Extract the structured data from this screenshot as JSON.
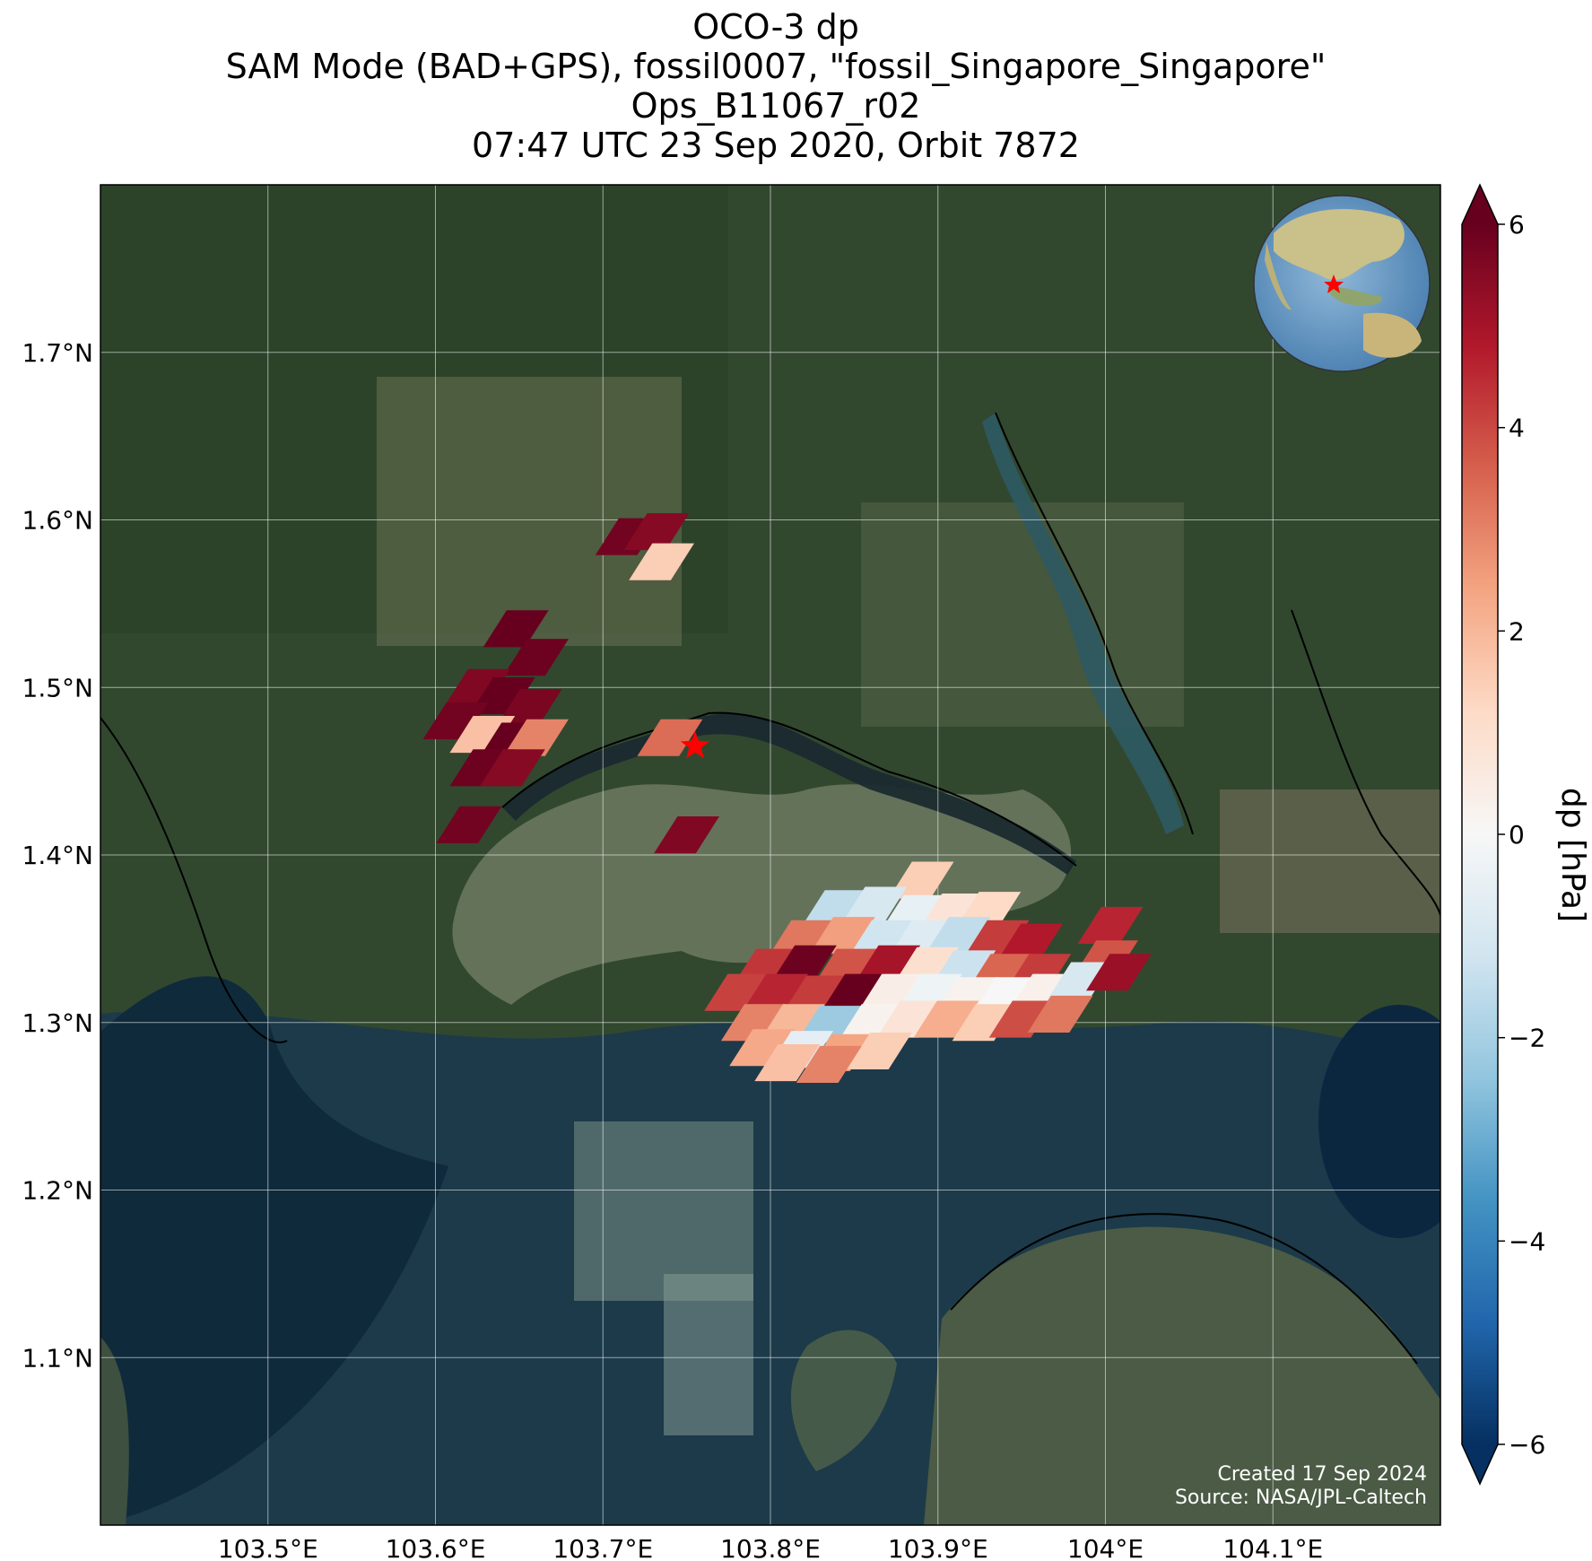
{
  "title": {
    "line1": "OCO-3 dp",
    "line2": "SAM Mode (BAD+GPS), fossil0007, \"fossil_Singapore_Singapore\"",
    "line3": "Ops_B11067_r02",
    "line4": "07:47 UTC 23 Sep 2020, Orbit 7872"
  },
  "map": {
    "lon_range": [
      103.4,
      104.2
    ],
    "lat_range": [
      1.0,
      1.8
    ],
    "lon_ticks": [
      {
        "value": 103.5,
        "label": "103.5°E"
      },
      {
        "value": 103.6,
        "label": "103.6°E"
      },
      {
        "value": 103.7,
        "label": "103.7°E"
      },
      {
        "value": 103.8,
        "label": "103.8°E"
      },
      {
        "value": 103.9,
        "label": "103.9°E"
      },
      {
        "value": 104.0,
        "label": "104°E"
      },
      {
        "value": 104.1,
        "label": "104.1°E"
      }
    ],
    "lat_ticks": [
      {
        "value": 1.1,
        "label": "1.1°N"
      },
      {
        "value": 1.2,
        "label": "1.2°N"
      },
      {
        "value": 1.3,
        "label": "1.3°N"
      },
      {
        "value": 1.4,
        "label": "1.4°N"
      },
      {
        "value": 1.5,
        "label": "1.5°N"
      },
      {
        "value": 1.6,
        "label": "1.6°N"
      },
      {
        "value": 1.7,
        "label": "1.7°N"
      }
    ],
    "grid": true,
    "target": {
      "lon": 103.755,
      "lat": 1.465,
      "marker": "red-star"
    },
    "inset_globe": {
      "position": "top-right",
      "marker": "red-star"
    },
    "credits": {
      "created": "Created 17 Sep 2024",
      "source": "Source: NASA/JPL-Caltech"
    }
  },
  "colorbar": {
    "label": "dp [hPa]",
    "range": [
      -6,
      6
    ],
    "ticks": [
      {
        "value": 6,
        "label": "6"
      },
      {
        "value": 4,
        "label": "4"
      },
      {
        "value": 2,
        "label": "2"
      },
      {
        "value": 0,
        "label": "0"
      },
      {
        "value": -2,
        "label": "−2"
      },
      {
        "value": -4,
        "label": "−4"
      },
      {
        "value": -6,
        "label": "−6"
      }
    ],
    "colormap": "RdBu_r",
    "extend": "both"
  },
  "chart_data": {
    "type": "heatmap",
    "variable": "dp",
    "units": "hPa",
    "soundings": [
      {
        "lon": 103.715,
        "lat": 1.59,
        "dp": 5.8
      },
      {
        "lon": 103.732,
        "lat": 1.593,
        "dp": 5.5
      },
      {
        "lon": 103.735,
        "lat": 1.575,
        "dp": 1.5
      },
      {
        "lon": 103.648,
        "lat": 1.535,
        "dp": 6.0
      },
      {
        "lon": 103.66,
        "lat": 1.518,
        "dp": 5.9
      },
      {
        "lon": 103.625,
        "lat": 1.5,
        "dp": 5.6
      },
      {
        "lon": 103.64,
        "lat": 1.495,
        "dp": 6.0
      },
      {
        "lon": 103.656,
        "lat": 1.488,
        "dp": 5.7
      },
      {
        "lon": 103.612,
        "lat": 1.48,
        "dp": 5.8
      },
      {
        "lon": 103.628,
        "lat": 1.472,
        "dp": 1.8
      },
      {
        "lon": 103.645,
        "lat": 1.468,
        "dp": 6.0
      },
      {
        "lon": 103.66,
        "lat": 1.47,
        "dp": 3.0
      },
      {
        "lon": 103.628,
        "lat": 1.452,
        "dp": 5.9
      },
      {
        "lon": 103.646,
        "lat": 1.452,
        "dp": 5.5
      },
      {
        "lon": 103.62,
        "lat": 1.418,
        "dp": 5.8
      },
      {
        "lon": 103.74,
        "lat": 1.47,
        "dp": 3.4
      },
      {
        "lon": 103.75,
        "lat": 1.412,
        "dp": 5.6
      },
      {
        "lon": 103.89,
        "lat": 1.385,
        "dp": 1.5
      },
      {
        "lon": 103.838,
        "lat": 1.368,
        "dp": -1.5
      },
      {
        "lon": 103.862,
        "lat": 1.37,
        "dp": -1.0
      },
      {
        "lon": 103.885,
        "lat": 1.365,
        "dp": -0.5
      },
      {
        "lon": 103.908,
        "lat": 1.366,
        "dp": 0.8
      },
      {
        "lon": 103.93,
        "lat": 1.367,
        "dp": 1.2
      },
      {
        "lon": 103.818,
        "lat": 1.35,
        "dp": 3.2
      },
      {
        "lon": 103.843,
        "lat": 1.352,
        "dp": 2.5
      },
      {
        "lon": 103.866,
        "lat": 1.35,
        "dp": -1.2
      },
      {
        "lon": 103.89,
        "lat": 1.35,
        "dp": -0.8
      },
      {
        "lon": 103.912,
        "lat": 1.352,
        "dp": -1.5
      },
      {
        "lon": 103.935,
        "lat": 1.35,
        "dp": 4.2
      },
      {
        "lon": 103.955,
        "lat": 1.348,
        "dp": 4.8
      },
      {
        "lon": 103.797,
        "lat": 1.333,
        "dp": 4.3
      },
      {
        "lon": 103.82,
        "lat": 1.335,
        "dp": 5.9
      },
      {
        "lon": 103.845,
        "lat": 1.333,
        "dp": 3.8
      },
      {
        "lon": 103.87,
        "lat": 1.335,
        "dp": 5.0
      },
      {
        "lon": 103.893,
        "lat": 1.334,
        "dp": 1.0
      },
      {
        "lon": 103.915,
        "lat": 1.332,
        "dp": -1.3
      },
      {
        "lon": 103.937,
        "lat": 1.33,
        "dp": 3.5
      },
      {
        "lon": 103.96,
        "lat": 1.33,
        "dp": 4.2
      },
      {
        "lon": 104.003,
        "lat": 1.358,
        "dp": 4.6
      },
      {
        "lon": 104.0,
        "lat": 1.338,
        "dp": 3.8
      },
      {
        "lon": 103.78,
        "lat": 1.318,
        "dp": 4.1
      },
      {
        "lon": 103.803,
        "lat": 1.318,
        "dp": 4.6
      },
      {
        "lon": 103.827,
        "lat": 1.317,
        "dp": 4.2
      },
      {
        "lon": 103.85,
        "lat": 1.318,
        "dp": 6.0
      },
      {
        "lon": 103.872,
        "lat": 1.318,
        "dp": 0.4
      },
      {
        "lon": 103.895,
        "lat": 1.318,
        "dp": -0.3
      },
      {
        "lon": 103.917,
        "lat": 1.316,
        "dp": 0.2
      },
      {
        "lon": 103.94,
        "lat": 1.316,
        "dp": 0.0
      },
      {
        "lon": 103.962,
        "lat": 1.318,
        "dp": 0.3
      },
      {
        "lon": 103.985,
        "lat": 1.325,
        "dp": -1.0
      },
      {
        "lon": 104.008,
        "lat": 1.33,
        "dp": 5.2
      },
      {
        "lon": 103.79,
        "lat": 1.3,
        "dp": 3.0
      },
      {
        "lon": 103.813,
        "lat": 1.3,
        "dp": 2.0
      },
      {
        "lon": 103.835,
        "lat": 1.299,
        "dp": -2.2
      },
      {
        "lon": 103.86,
        "lat": 1.3,
        "dp": 0.2
      },
      {
        "lon": 103.883,
        "lat": 1.302,
        "dp": 0.8
      },
      {
        "lon": 103.905,
        "lat": 1.302,
        "dp": 2.2
      },
      {
        "lon": 103.928,
        "lat": 1.3,
        "dp": 1.5
      },
      {
        "lon": 103.95,
        "lat": 1.302,
        "dp": 3.9
      },
      {
        "lon": 103.973,
        "lat": 1.305,
        "dp": 3.2
      },
      {
        "lon": 103.795,
        "lat": 1.285,
        "dp": 2.3
      },
      {
        "lon": 103.818,
        "lat": 1.284,
        "dp": -0.6
      },
      {
        "lon": 103.842,
        "lat": 1.282,
        "dp": 2.4
      },
      {
        "lon": 103.865,
        "lat": 1.283,
        "dp": 1.5
      },
      {
        "lon": 103.81,
        "lat": 1.276,
        "dp": 1.8
      },
      {
        "lon": 103.835,
        "lat": 1.275,
        "dp": 3.0
      }
    ]
  }
}
